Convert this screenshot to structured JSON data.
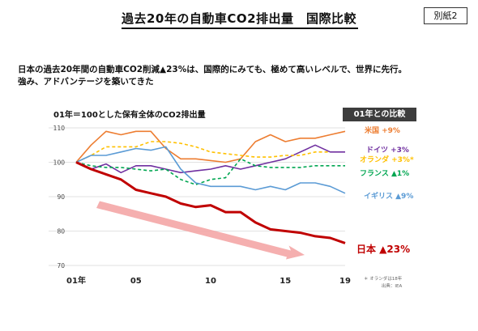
{
  "header": {
    "title": "過去20年の自動車CO2排出量　国際比較",
    "badge": "別紙2"
  },
  "summary": {
    "line1": "日本の過去20年間の自動車CO2削減▲23%は、国際的にみても、極めて高いレベルで、世界に先行。",
    "line2": "強み、アドバンテージを築いてきた"
  },
  "compare_header": "01年との比較",
  "notes": {
    "footnote": "＊ オランダは18年",
    "source": "出典：IEA"
  },
  "colors": {
    "japan": "#c00000",
    "usa": "#ed7d31",
    "germany": "#7030a0",
    "netherlands": "#ffc000",
    "france": "#00a651",
    "uk": "#5b9bd5",
    "arrow": "#f4a6a6",
    "grid": "#d9d9d9"
  },
  "chart_data": {
    "type": "line",
    "title": "01年＝100とした保有全体のCO2排出量",
    "x": [
      2001,
      2002,
      2003,
      2004,
      2005,
      2006,
      2007,
      2008,
      2009,
      2010,
      2011,
      2012,
      2013,
      2014,
      2015,
      2016,
      2017,
      2018,
      2019
    ],
    "xticks": [
      2001,
      2005,
      2010,
      2015,
      2019
    ],
    "xtick_labels": [
      "01年",
      "05",
      "10",
      "15",
      "19"
    ],
    "ylim": [
      70,
      110
    ],
    "yticks": [
      70,
      80,
      90,
      100,
      110
    ],
    "grid": "horizontal",
    "series": [
      {
        "name": "米国",
        "label": "米国 +9%",
        "color_key": "usa",
        "dash": false,
        "values": [
          100,
          105,
          109,
          108,
          109,
          109,
          104,
          101,
          101,
          100.5,
          100,
          101,
          106,
          108,
          106,
          107,
          107,
          108,
          109
        ]
      },
      {
        "name": "ドイツ",
        "label": "ドイツ +3%",
        "color_key": "germany",
        "dash": false,
        "values": [
          100,
          98,
          99.5,
          97,
          99,
          99,
          98,
          97,
          97.5,
          98,
          99,
          98,
          99,
          100,
          101,
          103,
          105,
          103,
          103
        ]
      },
      {
        "name": "オランダ",
        "label": "オランダ +3%*",
        "color_key": "netherlands",
        "dash": true,
        "values": [
          100,
          102,
          104.5,
          104.5,
          104.5,
          106,
          106,
          105.5,
          104.5,
          103,
          102.5,
          102,
          101.5,
          101.5,
          102,
          102,
          103,
          103,
          null
        ]
      },
      {
        "name": "フランス",
        "label": "フランス ▲1%",
        "color_key": "france",
        "dash": true,
        "values": [
          100,
          99,
          98.5,
          98.5,
          98,
          97.5,
          98,
          95,
          93.5,
          95,
          95.5,
          101,
          99,
          98.5,
          98.5,
          98.5,
          99,
          99,
          99
        ]
      },
      {
        "name": "イギリス",
        "label": "イギリス ▲9%",
        "color_key": "uk",
        "dash": false,
        "values": [
          100,
          102,
          102,
          103,
          104,
          103.5,
          104.5,
          98,
          94,
          93,
          93,
          93,
          92,
          93,
          92,
          94,
          94,
          93,
          91
        ]
      },
      {
        "name": "日本",
        "label": "日本 ▲23%",
        "color_key": "japan",
        "dash": false,
        "values": [
          100,
          98,
          96.5,
          95,
          92,
          91,
          90,
          88,
          87,
          87.5,
          85.5,
          85.5,
          82.5,
          80.5,
          80,
          79.5,
          78.5,
          78,
          76.5
        ]
      }
    ]
  }
}
